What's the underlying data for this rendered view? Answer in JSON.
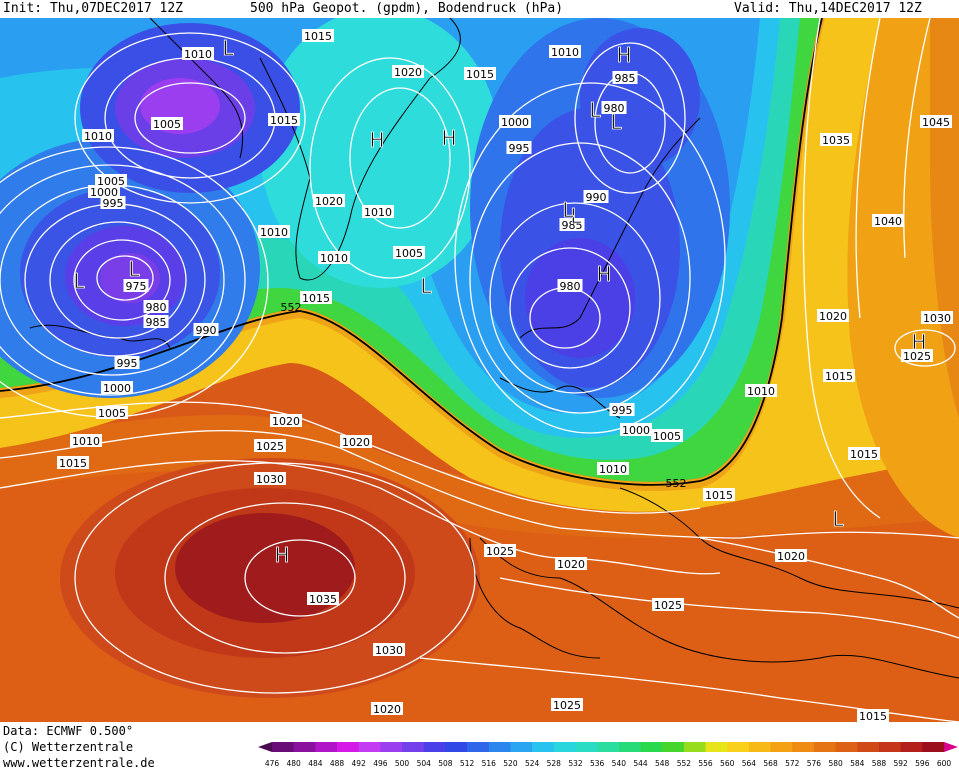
{
  "header": {
    "init": "Init: Thu,07DEC2017 12Z",
    "title": "500 hPa Geopot. (gpdm), Bodendruck (hPa)",
    "valid": "Valid: Thu,14DEC2017 12Z"
  },
  "footer": {
    "data_source": "Data: ECMWF   0.500°",
    "copyright": "(C) Wetterzentrale",
    "website": "www.wetterzentrale.de"
  },
  "colorbar": {
    "ticks": [
      "476",
      "480",
      "484",
      "488",
      "492",
      "496",
      "500",
      "504",
      "508",
      "512",
      "516",
      "520",
      "524",
      "528",
      "532",
      "536",
      "540",
      "544",
      "548",
      "552",
      "556",
      "560",
      "564",
      "568",
      "572",
      "576",
      "580",
      "584",
      "588",
      "592",
      "596",
      "600"
    ],
    "colors": [
      "#4a0a4f",
      "#6a0c78",
      "#8a119e",
      "#b015c8",
      "#d51ae8",
      "#c33bf2",
      "#9a3ef0",
      "#7440ec",
      "#4a3fe8",
      "#3048e6",
      "#2f66ea",
      "#2c86ee",
      "#2aa6f0",
      "#27c3ee",
      "#2ad6de",
      "#2bdcc4",
      "#2bdea0",
      "#27dc78",
      "#2ad84e",
      "#46d62b",
      "#98dc1e",
      "#e8e41a",
      "#f9d11a",
      "#f7b916",
      "#f5a114",
      "#ef8a12",
      "#e57512",
      "#dc6016",
      "#d04a18",
      "#c4351a",
      "#b41f1c",
      "#9c0e1c",
      "#d8008a"
    ]
  },
  "map": {
    "isobar_labels": [
      {
        "text": "1010"
      },
      {
        "text": "1015"
      },
      {
        "text": "1010"
      },
      {
        "text": "1015"
      },
      {
        "text": "1005"
      },
      {
        "text": "1010"
      },
      {
        "text": "1020"
      },
      {
        "text": "1015"
      },
      {
        "text": "1010"
      },
      {
        "text": "1000"
      },
      {
        "text": "995"
      },
      {
        "text": "985"
      },
      {
        "text": "980"
      },
      {
        "text": "1035"
      },
      {
        "text": "1045"
      },
      {
        "text": "1005"
      },
      {
        "text": "1000"
      },
      {
        "text": "995"
      },
      {
        "text": "975"
      },
      {
        "text": "980"
      },
      {
        "text": "985"
      },
      {
        "text": "990"
      },
      {
        "text": "995"
      },
      {
        "text": "1000"
      },
      {
        "text": "1005"
      },
      {
        "text": "1010"
      },
      {
        "text": "1015"
      },
      {
        "text": "1015"
      },
      {
        "text": "1020"
      },
      {
        "text": "1010"
      },
      {
        "text": "1010"
      },
      {
        "text": "1005"
      },
      {
        "text": "1040"
      },
      {
        "text": "990"
      },
      {
        "text": "985"
      },
      {
        "text": "980"
      },
      {
        "text": "1030"
      },
      {
        "text": "1020"
      },
      {
        "text": "1025"
      },
      {
        "text": "1015"
      },
      {
        "text": "1010"
      },
      {
        "text": "995"
      },
      {
        "text": "1000"
      },
      {
        "text": "1005"
      },
      {
        "text": "1020"
      },
      {
        "text": "1025"
      },
      {
        "text": "1030"
      },
      {
        "text": "1020"
      },
      {
        "text": "1015"
      },
      {
        "text": "1010"
      },
      {
        "text": "1015"
      },
      {
        "text": "1035"
      },
      {
        "text": "1025"
      },
      {
        "text": "1020"
      },
      {
        "text": "1025"
      },
      {
        "text": "1020"
      },
      {
        "text": "1030"
      },
      {
        "text": "1025"
      },
      {
        "text": "1020"
      },
      {
        "text": "1015"
      }
    ],
    "pressure_centers": [
      {
        "symbol": "L"
      },
      {
        "symbol": "L"
      },
      {
        "symbol": "L"
      },
      {
        "symbol": "L"
      },
      {
        "symbol": "H"
      },
      {
        "symbol": "H"
      },
      {
        "symbol": "L"
      },
      {
        "symbol": "L"
      },
      {
        "symbol": "H"
      },
      {
        "symbol": "H"
      },
      {
        "symbol": "L"
      },
      {
        "symbol": "H"
      },
      {
        "symbol": "H"
      },
      {
        "symbol": "L"
      },
      {
        "symbol": "L"
      }
    ],
    "contour_labels": [
      {
        "text": "552"
      },
      {
        "text": "552"
      }
    ]
  }
}
